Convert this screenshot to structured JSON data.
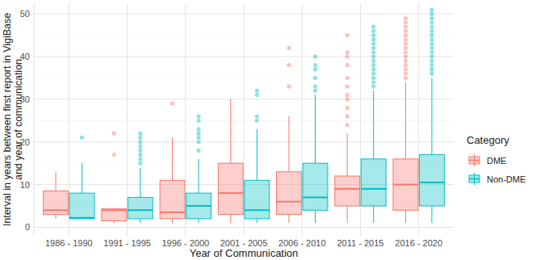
{
  "chart_data": {
    "type": "box",
    "x_label": "Year of Communication",
    "y_label": [
      "Interval in years between first report in VigiBase",
      "and year of communication"
    ],
    "legend_title": "Category",
    "legend": "right",
    "grid": true,
    "categories": [
      "1986 - 1990",
      "1991 - 1995",
      "1996 - 2000",
      "2001 - 2005",
      "2006 - 2010",
      "2011 - 2015",
      "2016 - 2020"
    ],
    "ylim": [
      -2,
      52.5
    ],
    "yticks": [
      0,
      10,
      20,
      30,
      40,
      50
    ],
    "series": [
      {
        "name": "DME",
        "color": "#F8766D",
        "values": [
          {
            "min": 2,
            "q1": 3,
            "median": 4,
            "q3": 8.5,
            "max": 13,
            "outliers": []
          },
          {
            "min": 1,
            "q1": 1.5,
            "median": 4,
            "q3": 4.3,
            "max": 4.5,
            "outliers": [
              17,
              22
            ]
          },
          {
            "min": 1,
            "q1": 2,
            "median": 3.5,
            "q3": 11,
            "max": 21,
            "outliers": [
              29
            ]
          },
          {
            "min": 1,
            "q1": 3,
            "median": 8,
            "q3": 15,
            "max": 30,
            "outliers": []
          },
          {
            "min": 1,
            "q1": 3,
            "median": 6,
            "q3": 13,
            "max": 26,
            "outliers": [
              33,
              38,
              42
            ]
          },
          {
            "min": 1,
            "q1": 5,
            "median": 9,
            "q3": 12,
            "max": 22,
            "outliers": [
              24,
              26,
              28,
              30,
              31,
              33,
              35,
              38,
              40,
              41,
              45
            ]
          },
          {
            "min": 1,
            "q1": 4,
            "median": 10,
            "q3": 16,
            "max": 34,
            "outliers": [
              35,
              36,
              37,
              38,
              39,
              40,
              41,
              42,
              43,
              44,
              45,
              46,
              47,
              48,
              49
            ]
          }
        ]
      },
      {
        "name": "Non-DME",
        "color": "#00BFC4",
        "values": [
          {
            "min": 2,
            "q1": 2,
            "median": 2.2,
            "q3": 8,
            "max": 15,
            "outliers": [
              21
            ]
          },
          {
            "min": 1,
            "q1": 2,
            "median": 4,
            "q3": 7,
            "max": 14,
            "outliers": [
              15,
              16,
              17,
              18,
              19,
              20,
              21,
              22
            ]
          },
          {
            "min": 1,
            "q1": 2,
            "median": 5,
            "q3": 8,
            "max": 16,
            "outliers": [
              18,
              20,
              21,
              22,
              23,
              25,
              26
            ]
          },
          {
            "min": 1,
            "q1": 2,
            "median": 4,
            "q3": 11,
            "max": 23,
            "outliers": [
              25,
              26,
              31,
              32
            ]
          },
          {
            "min": 1,
            "q1": 4,
            "median": 7,
            "q3": 15,
            "max": 31,
            "outliers": [
              32,
              33,
              35,
              37,
              38,
              40
            ]
          },
          {
            "min": 1,
            "q1": 5,
            "median": 9,
            "q3": 16,
            "max": 32,
            "outliers": [
              33,
              34,
              35,
              36,
              37,
              38,
              39,
              40,
              41,
              42,
              43,
              44,
              45,
              46,
              47
            ]
          },
          {
            "min": 1,
            "q1": 5,
            "median": 10.5,
            "q3": 17,
            "max": 35,
            "outliers": [
              36,
              37,
              38,
              39,
              40,
              41,
              42,
              43,
              44,
              45,
              46,
              47,
              48,
              49,
              50,
              51
            ]
          }
        ]
      }
    ]
  }
}
